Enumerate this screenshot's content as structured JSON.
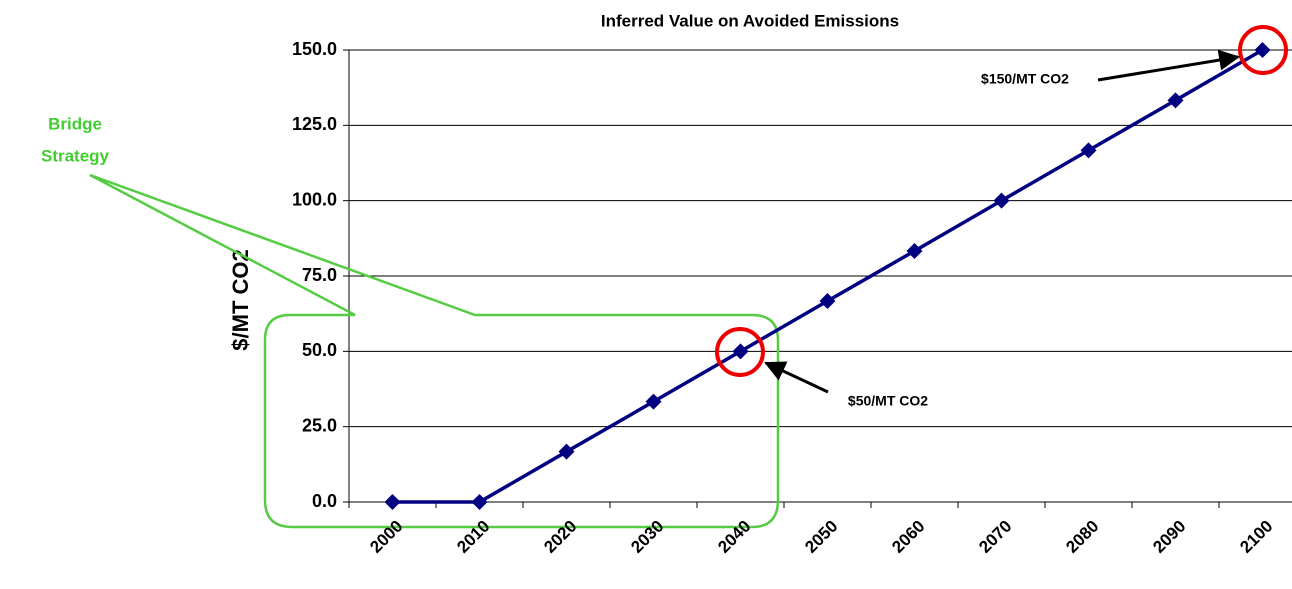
{
  "chart_data": {
    "type": "line",
    "title": "Inferred Value on Avoided Emissions",
    "y_label": "$/MT CO2",
    "categories": [
      "2000",
      "2010",
      "2020",
      "2030",
      "2040",
      "2050",
      "2060",
      "2070",
      "2080",
      "2090",
      "2100"
    ],
    "series": [
      {
        "name": "Inferred value",
        "color": "#000080",
        "values": [
          0,
          0,
          16.7,
          33.3,
          50,
          66.7,
          83.3,
          100,
          116.7,
          133.3,
          150
        ]
      }
    ],
    "ylim": [
      0,
      150
    ],
    "yticks": [
      {
        "value": 0,
        "label": "0.0"
      },
      {
        "value": 25,
        "label": "25.0"
      },
      {
        "value": 50,
        "label": "50.0"
      },
      {
        "value": 75,
        "label": "75.0"
      },
      {
        "value": 100,
        "label": "100.0"
      },
      {
        "value": 125,
        "label": "125.0"
      },
      {
        "value": 150,
        "label": "150.0"
      }
    ],
    "grid": true,
    "annotations": [
      "$150/MT CO2",
      "$50/MT CO2",
      "Bridge",
      "Strategy"
    ]
  }
}
